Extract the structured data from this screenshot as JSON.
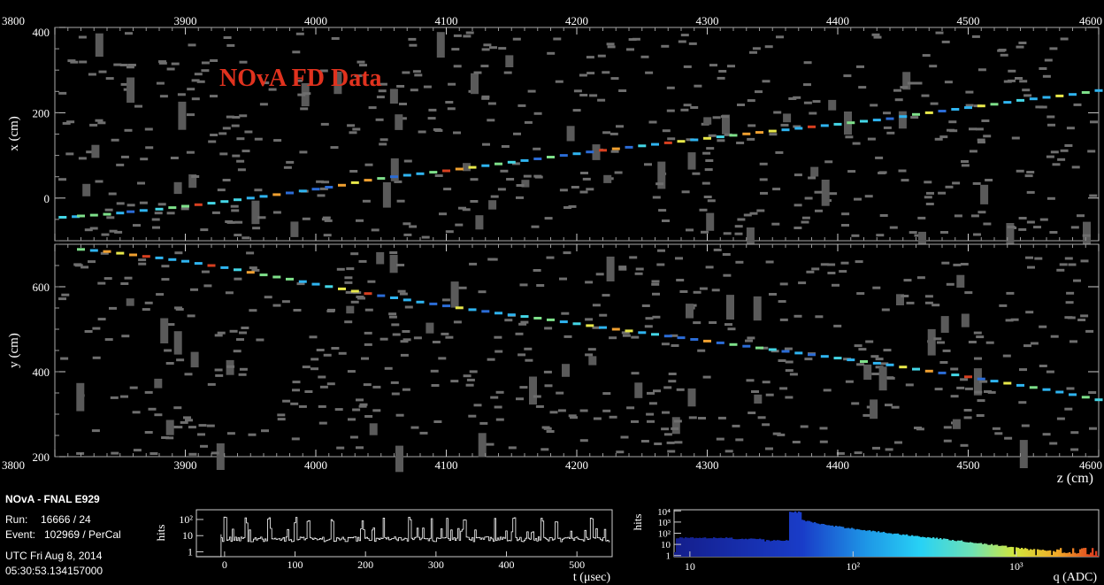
{
  "info": {
    "title": "NOvA - FNAL E929",
    "run_label": "Run:",
    "run_value": "16666 / 24",
    "event_label": "Event:",
    "event_value": "102969 / PerCal",
    "date": "UTC Fri Aug 8, 2014",
    "time": "05:30:53.134157000"
  },
  "chart_data": [
    {
      "type": "scatter",
      "name": "xz-view",
      "annotation": "NOvA FD Data",
      "annotation_color": "#e0321e",
      "xlabel": "",
      "ylabel": "x (cm)",
      "xlim": [
        3800,
        4600
      ],
      "ylim": [
        -100,
        400
      ],
      "xticks": [
        "3800",
        "3900",
        "4000",
        "4100",
        "4200",
        "4300",
        "4400",
        "4500",
        "4600"
      ],
      "yticks": [
        "0",
        "200",
        "400"
      ],
      "track": [
        [
          3806,
          -45
        ],
        [
          3820,
          -42
        ],
        [
          3840,
          -38
        ],
        [
          3858,
          -32
        ],
        [
          3880,
          -26
        ],
        [
          3900,
          -19
        ],
        [
          3920,
          -12
        ],
        [
          3940,
          -4
        ],
        [
          3960,
          4
        ],
        [
          3980,
          12
        ],
        [
          4000,
          21
        ],
        [
          4020,
          30
        ],
        [
          4040,
          42
        ],
        [
          4060,
          50
        ],
        [
          4080,
          57
        ],
        [
          4100,
          64
        ],
        [
          4120,
          72
        ],
        [
          4140,
          80
        ],
        [
          4160,
          88
        ],
        [
          4180,
          96
        ],
        [
          4200,
          104
        ],
        [
          4220,
          112
        ],
        [
          4240,
          119
        ],
        [
          4260,
          126
        ],
        [
          4280,
          133
        ],
        [
          4300,
          140
        ],
        [
          4320,
          147
        ],
        [
          4340,
          154
        ],
        [
          4360,
          160
        ],
        [
          4380,
          167
        ],
        [
          4400,
          173
        ],
        [
          4420,
          180
        ],
        [
          4440,
          186
        ],
        [
          4460,
          196
        ],
        [
          4480,
          204
        ],
        [
          4500,
          212
        ],
        [
          4520,
          220
        ],
        [
          4540,
          229
        ],
        [
          4560,
          236
        ],
        [
          4580,
          243
        ],
        [
          4600,
          252
        ]
      ]
    },
    {
      "type": "scatter",
      "name": "yz-view",
      "xlabel": "z (cm)",
      "ylabel": "y (cm)",
      "xlim": [
        3800,
        4600
      ],
      "ylim": [
        200,
        700
      ],
      "xticks": [
        "3800",
        "3900",
        "4000",
        "4100",
        "4200",
        "4300",
        "4400",
        "4500",
        "4600"
      ],
      "yticks": [
        "200",
        "400",
        "600"
      ],
      "track": [
        [
          3820,
          688
        ],
        [
          3840,
          683
        ],
        [
          3860,
          675
        ],
        [
          3880,
          668
        ],
        [
          3900,
          660
        ],
        [
          3920,
          650
        ],
        [
          3940,
          640
        ],
        [
          3960,
          628
        ],
        [
          3980,
          618
        ],
        [
          4000,
          606
        ],
        [
          4020,
          595
        ],
        [
          4040,
          584
        ],
        [
          4060,
          574
        ],
        [
          4080,
          564
        ],
        [
          4100,
          555
        ],
        [
          4120,
          546
        ],
        [
          4140,
          538
        ],
        [
          4160,
          530
        ],
        [
          4180,
          522
        ],
        [
          4200,
          513
        ],
        [
          4220,
          504
        ],
        [
          4240,
          496
        ],
        [
          4260,
          488
        ],
        [
          4280,
          480
        ],
        [
          4300,
          472
        ],
        [
          4320,
          464
        ],
        [
          4340,
          456
        ],
        [
          4360,
          448
        ],
        [
          4380,
          440
        ],
        [
          4400,
          432
        ],
        [
          4420,
          424
        ],
        [
          4440,
          416
        ],
        [
          4460,
          406
        ],
        [
          4480,
          397
        ],
        [
          4500,
          388
        ],
        [
          4520,
          378
        ],
        [
          4540,
          368
        ],
        [
          4560,
          358
        ],
        [
          4580,
          346
        ],
        [
          4600,
          334
        ]
      ]
    },
    {
      "type": "line",
      "name": "timing-histogram",
      "xlabel": "t (μsec)",
      "ylabel": "hits",
      "xlim": [
        -40,
        550
      ],
      "xticks": [
        "0",
        "100",
        "200",
        "300",
        "400",
        "500"
      ],
      "yticks": [
        "1",
        "10",
        "10²"
      ],
      "ylog": true,
      "baseline_hits": 6,
      "spike_times": [
        0,
        30,
        62,
        100,
        118,
        152,
        195,
        225,
        262,
        293,
        315,
        340,
        383,
        410,
        450,
        470,
        520
      ]
    },
    {
      "type": "bar",
      "name": "charge-histogram",
      "xlabel": "q (ADC)",
      "ylabel": "hits",
      "xlog": true,
      "ylog": true,
      "xlim": [
        8,
        3200
      ],
      "xticks": [
        "10",
        "10²",
        "10³"
      ],
      "yticks": [
        "1",
        "10",
        "10²",
        "10³",
        "10⁴"
      ],
      "segments": [
        [
          8,
          18,
          40
        ],
        [
          18,
          28,
          30
        ],
        [
          28,
          40,
          22
        ],
        [
          40,
          48,
          8000
        ],
        [
          48,
          70,
          1500
        ],
        [
          70,
          150,
          500
        ],
        [
          150,
          400,
          120
        ],
        [
          400,
          1000,
          25
        ],
        [
          1000,
          3200,
          5
        ]
      ]
    }
  ]
}
